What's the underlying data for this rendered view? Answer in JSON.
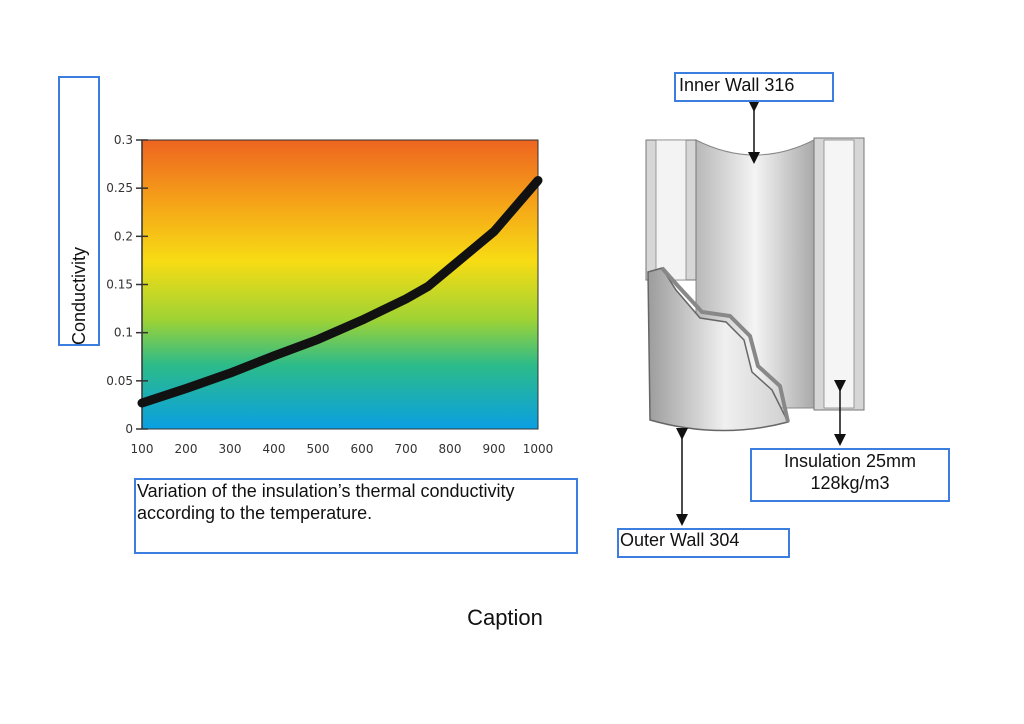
{
  "chart_data": {
    "type": "line",
    "title": "",
    "xlabel": "",
    "ylabel": "Conductivity",
    "x": [
      100,
      200,
      300,
      400,
      500,
      600,
      700,
      750,
      800,
      900,
      1000
    ],
    "series": [
      {
        "values": [
          0.027,
          0.042,
          0.058,
          0.076,
          0.093,
          0.113,
          0.135,
          0.148,
          0.167,
          0.205,
          0.258
        ]
      }
    ],
    "xticks": [
      "100",
      "200",
      "300",
      "400",
      "500",
      "600",
      "700",
      "800",
      "900",
      "1000"
    ],
    "yticks": [
      "0",
      "0.05",
      "0.1",
      "0.15",
      "0.2",
      "0.25",
      "0.3"
    ],
    "xlim": [
      100,
      1000
    ],
    "ylim": [
      0,
      0.3
    ],
    "background": "gradient blue-green-yellow-orange",
    "colors": {
      "line": "#111111",
      "bg_top": "#ee6a1e",
      "bg_mid": "#f6d818",
      "bg_low": "#7ec842",
      "bg_bottom": "#0aa0e0"
    },
    "grid": false,
    "legend": "none",
    "caption": "Variation of the insulation’s thermal conductivity according to the temperature."
  },
  "diagram": {
    "labels": {
      "inner_wall": "Inner Wall 316",
      "insulation_line1": "Insulation 25mm",
      "insulation_line2": "128kg/m3",
      "outer_wall": "Outer Wall 304"
    }
  },
  "page": {
    "caption": "Caption"
  }
}
